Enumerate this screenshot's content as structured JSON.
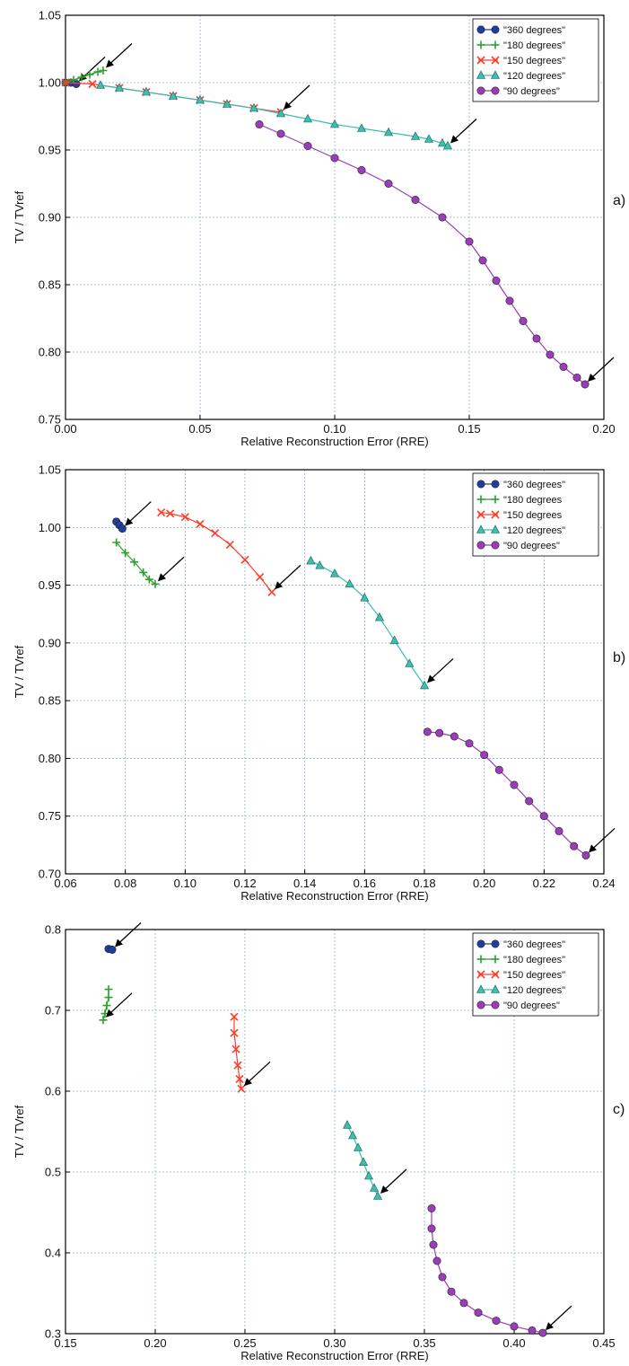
{
  "chart_data": [
    {
      "type": "scatter",
      "panel_label": "a)",
      "xlabel": "Relative Reconstruction Error (RRE)",
      "ylabel": "TV / TVref",
      "xlim": [
        0.0,
        0.2
      ],
      "ylim": [
        0.75,
        1.05
      ],
      "xticks": [
        "0.00",
        "0.05",
        "0.10",
        "0.15",
        "0.20"
      ],
      "yticks": [
        "0.75",
        "0.80",
        "0.85",
        "0.90",
        "0.95",
        "1.00",
        "1.05"
      ],
      "grid": true,
      "legend_position": "top-right",
      "series": [
        {
          "name": "\"360 degrees\"",
          "marker": "circle",
          "color": "#1f3f9f",
          "points": [
            [
              0.0,
              1.0
            ],
            [
              0.002,
              1.0
            ],
            [
              0.004,
              0.999
            ]
          ]
        },
        {
          "name": "\"180 degrees\"",
          "marker": "plus",
          "color": "#2ca02c",
          "points": [
            [
              0.0,
              1.0
            ],
            [
              0.003,
              1.002
            ],
            [
              0.006,
              1.004
            ],
            [
              0.009,
              1.006
            ],
            [
              0.012,
              1.008
            ],
            [
              0.014,
              1.009
            ]
          ]
        },
        {
          "name": "\"150 degrees\"",
          "marker": "x",
          "color": "#ff3b2b",
          "points": [
            [
              0.0,
              1.0
            ],
            [
              0.01,
              0.999
            ],
            [
              0.02,
              0.996
            ],
            [
              0.03,
              0.993
            ],
            [
              0.04,
              0.99
            ],
            [
              0.05,
              0.987
            ],
            [
              0.06,
              0.984
            ],
            [
              0.07,
              0.981
            ],
            [
              0.08,
              0.978
            ]
          ]
        },
        {
          "name": "\"120 degrees\"",
          "marker": "triangle",
          "color": "#3bbfb0",
          "points": [
            [
              0.013,
              0.998
            ],
            [
              0.02,
              0.996
            ],
            [
              0.03,
              0.993
            ],
            [
              0.04,
              0.99
            ],
            [
              0.05,
              0.987
            ],
            [
              0.06,
              0.984
            ],
            [
              0.07,
              0.981
            ],
            [
              0.08,
              0.977
            ],
            [
              0.09,
              0.973
            ],
            [
              0.1,
              0.969
            ],
            [
              0.11,
              0.966
            ],
            [
              0.12,
              0.963
            ],
            [
              0.13,
              0.96
            ],
            [
              0.135,
              0.958
            ],
            [
              0.14,
              0.955
            ],
            [
              0.142,
              0.953
            ]
          ]
        },
        {
          "name": "\"90 degrees\"",
          "marker": "circle",
          "color": "#9b3db8",
          "points": [
            [
              0.072,
              0.969
            ],
            [
              0.08,
              0.962
            ],
            [
              0.09,
              0.953
            ],
            [
              0.1,
              0.944
            ],
            [
              0.11,
              0.935
            ],
            [
              0.12,
              0.925
            ],
            [
              0.13,
              0.913
            ],
            [
              0.14,
              0.9
            ],
            [
              0.15,
              0.882
            ],
            [
              0.155,
              0.868
            ],
            [
              0.16,
              0.853
            ],
            [
              0.165,
              0.838
            ],
            [
              0.17,
              0.823
            ],
            [
              0.175,
              0.81
            ],
            [
              0.18,
              0.798
            ],
            [
              0.185,
              0.789
            ],
            [
              0.19,
              0.781
            ],
            [
              0.193,
              0.776
            ]
          ]
        }
      ]
    },
    {
      "type": "scatter",
      "panel_label": "b)",
      "xlabel": "Relative Reconstruction Error (RRE)",
      "ylabel": "TV / TVref",
      "xlim": [
        0.06,
        0.24
      ],
      "ylim": [
        0.7,
        1.05
      ],
      "xticks": [
        "0.06",
        "0.08",
        "0.10",
        "0.12",
        "0.14",
        "0.16",
        "0.18",
        "0.20",
        "0.22",
        "0.24"
      ],
      "yticks": [
        "0.70",
        "0.75",
        "0.80",
        "0.85",
        "0.90",
        "0.95",
        "1.00",
        "1.05"
      ],
      "grid": true,
      "legend_position": "top-right",
      "series": [
        {
          "name": "\"360 degrees\"",
          "marker": "circle",
          "color": "#1f3f9f",
          "points": [
            [
              0.077,
              1.005
            ],
            [
              0.078,
              1.002
            ],
            [
              0.079,
              0.999
            ]
          ]
        },
        {
          "name": "\"180 degrees",
          "marker": "plus",
          "color": "#2ca02c",
          "points": [
            [
              0.077,
              0.987
            ],
            [
              0.08,
              0.978
            ],
            [
              0.083,
              0.97
            ],
            [
              0.086,
              0.961
            ],
            [
              0.088,
              0.955
            ],
            [
              0.09,
              0.951
            ]
          ]
        },
        {
          "name": "\"150 degrees",
          "marker": "x",
          "color": "#ff3b2b",
          "points": [
            [
              0.092,
              1.013
            ],
            [
              0.095,
              1.012
            ],
            [
              0.1,
              1.009
            ],
            [
              0.105,
              1.003
            ],
            [
              0.11,
              0.995
            ],
            [
              0.115,
              0.985
            ],
            [
              0.12,
              0.972
            ],
            [
              0.125,
              0.957
            ],
            [
              0.129,
              0.944
            ]
          ]
        },
        {
          "name": "\"120 degrees\"",
          "marker": "triangle",
          "color": "#3bbfb0",
          "points": [
            [
              0.142,
              0.971
            ],
            [
              0.145,
              0.967
            ],
            [
              0.15,
              0.96
            ],
            [
              0.155,
              0.951
            ],
            [
              0.16,
              0.939
            ],
            [
              0.165,
              0.922
            ],
            [
              0.17,
              0.902
            ],
            [
              0.175,
              0.882
            ],
            [
              0.18,
              0.863
            ]
          ]
        },
        {
          "name": "\"90 degrees\"",
          "marker": "circle",
          "color": "#9b3db8",
          "points": [
            [
              0.181,
              0.823
            ],
            [
              0.185,
              0.822
            ],
            [
              0.19,
              0.819
            ],
            [
              0.195,
              0.813
            ],
            [
              0.2,
              0.803
            ],
            [
              0.205,
              0.79
            ],
            [
              0.21,
              0.777
            ],
            [
              0.215,
              0.763
            ],
            [
              0.22,
              0.75
            ],
            [
              0.225,
              0.737
            ],
            [
              0.23,
              0.724
            ],
            [
              0.234,
              0.716
            ]
          ]
        }
      ]
    },
    {
      "type": "scatter",
      "panel_label": "c)",
      "xlabel": "Relative Reconstruction Error (RRE)",
      "ylabel": "TV / TVref",
      "xlim": [
        0.15,
        0.45
      ],
      "ylim": [
        0.3,
        0.8
      ],
      "xticks": [
        "0.15",
        "0.20",
        "0.25",
        "0.30",
        "0.35",
        "0.40",
        "0.45"
      ],
      "yticks": [
        "0.3",
        "0.4",
        "0.5",
        "0.6",
        "0.7",
        "0.8"
      ],
      "grid": true,
      "legend_position": "top-right",
      "series": [
        {
          "name": "\"360 degrees\"",
          "marker": "circle",
          "color": "#1f3f9f",
          "points": [
            [
              0.174,
              0.776
            ],
            [
              0.176,
              0.775
            ]
          ]
        },
        {
          "name": "\"180 degrees\"",
          "marker": "plus",
          "color": "#2ca02c",
          "points": [
            [
              0.174,
              0.726
            ],
            [
              0.174,
              0.716
            ],
            [
              0.173,
              0.706
            ],
            [
              0.172,
              0.696
            ],
            [
              0.171,
              0.688
            ]
          ]
        },
        {
          "name": "\"150 degrees\"",
          "marker": "x",
          "color": "#ff3b2b",
          "points": [
            [
              0.244,
              0.692
            ],
            [
              0.244,
              0.672
            ],
            [
              0.245,
              0.652
            ],
            [
              0.246,
              0.632
            ],
            [
              0.247,
              0.615
            ],
            [
              0.248,
              0.603
            ]
          ]
        },
        {
          "name": "\"120 degrees\"",
          "marker": "triangle",
          "color": "#3bbfb0",
          "points": [
            [
              0.307,
              0.558
            ],
            [
              0.31,
              0.545
            ],
            [
              0.313,
              0.53
            ],
            [
              0.316,
              0.512
            ],
            [
              0.319,
              0.495
            ],
            [
              0.322,
              0.48
            ],
            [
              0.324,
              0.47
            ]
          ]
        },
        {
          "name": "\"90 degrees\"",
          "marker": "circle",
          "color": "#9b3db8",
          "points": [
            [
              0.354,
              0.455
            ],
            [
              0.354,
              0.43
            ],
            [
              0.355,
              0.41
            ],
            [
              0.357,
              0.39
            ],
            [
              0.36,
              0.37
            ],
            [
              0.365,
              0.352
            ],
            [
              0.372,
              0.338
            ],
            [
              0.38,
              0.326
            ],
            [
              0.39,
              0.316
            ],
            [
              0.4,
              0.309
            ],
            [
              0.41,
              0.304
            ],
            [
              0.416,
              0.301
            ]
          ]
        }
      ]
    }
  ]
}
